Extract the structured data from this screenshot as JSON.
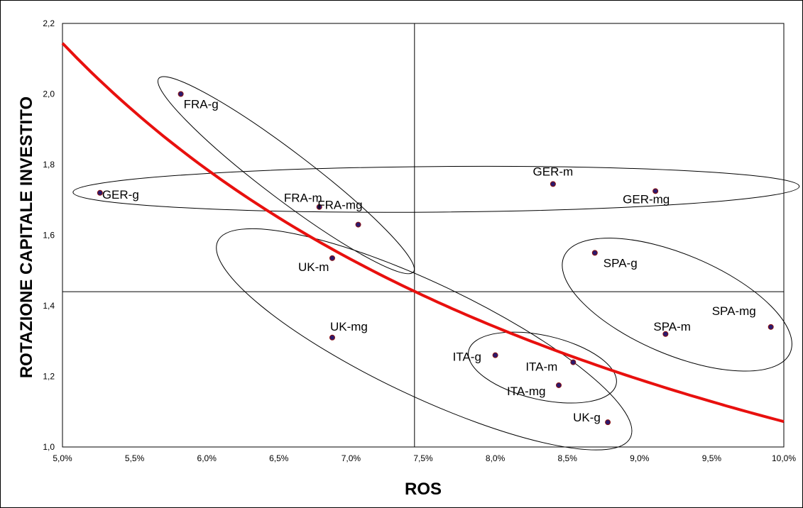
{
  "chart_data": {
    "type": "scatter",
    "xlabel": "ROS",
    "ylabel": "ROTAZIONE CAPITALE INVESTITO",
    "xlim": [
      0.05,
      0.1
    ],
    "ylim": [
      1.0,
      2.2
    ],
    "x_ticks": [
      "5,0%",
      "5,5%",
      "6,0%",
      "6,5%",
      "7,0%",
      "7,5%",
      "8,0%",
      "8,5%",
      "9,0%",
      "9,5%",
      "10,0%"
    ],
    "y_ticks": [
      "1,0",
      "1,2",
      "1,4",
      "1,6",
      "1,8",
      "2,0",
      "2,2"
    ],
    "grid": false,
    "legend": "none",
    "reference_lines": {
      "x": 0.0744,
      "y": 1.44
    },
    "points": [
      {
        "label": "FRA-g",
        "x": 0.0582,
        "y": 2.0
      },
      {
        "label": "FRA-m",
        "x": 0.0678,
        "y": 1.68
      },
      {
        "label": "FRA-mg",
        "x": 0.0705,
        "y": 1.63
      },
      {
        "label": "GER-g",
        "x": 0.0526,
        "y": 1.72
      },
      {
        "label": "GER-m",
        "x": 0.084,
        "y": 1.745
      },
      {
        "label": "GER-mg",
        "x": 0.0911,
        "y": 1.725
      },
      {
        "label": "UK-m",
        "x": 0.0687,
        "y": 1.535
      },
      {
        "label": "UK-mg",
        "x": 0.0687,
        "y": 1.31
      },
      {
        "label": "UK-g",
        "x": 0.0878,
        "y": 1.07
      },
      {
        "label": "ITA-g",
        "x": 0.08,
        "y": 1.26
      },
      {
        "label": "ITA-m",
        "x": 0.0854,
        "y": 1.24
      },
      {
        "label": "ITA-mg",
        "x": 0.0844,
        "y": 1.175
      },
      {
        "label": "SPA-g",
        "x": 0.0869,
        "y": 1.55
      },
      {
        "label": "SPA-m",
        "x": 0.0918,
        "y": 1.32
      },
      {
        "label": "SPA-mg",
        "x": 0.0991,
        "y": 1.34
      }
    ],
    "curve": {
      "description": "iso-ROI curve",
      "color": "#e8100e",
      "product_constant": 0.1072
    },
    "groups": [
      {
        "name": "FRA",
        "members": [
          "FRA-g",
          "FRA-m",
          "FRA-mg"
        ]
      },
      {
        "name": "GER",
        "members": [
          "GER-g",
          "GER-m",
          "GER-mg"
        ]
      },
      {
        "name": "UK",
        "members": [
          "UK-m",
          "UK-mg",
          "UK-g"
        ]
      },
      {
        "name": "ITA",
        "members": [
          "ITA-g",
          "ITA-m",
          "ITA-mg"
        ]
      },
      {
        "name": "SPA",
        "members": [
          "SPA-g",
          "SPA-m",
          "SPA-mg"
        ]
      }
    ],
    "colors": {
      "point_fill": "#2b1a6e",
      "point_stroke": "#8b1010",
      "curve": "#e8100e",
      "axes": "#000000"
    }
  }
}
